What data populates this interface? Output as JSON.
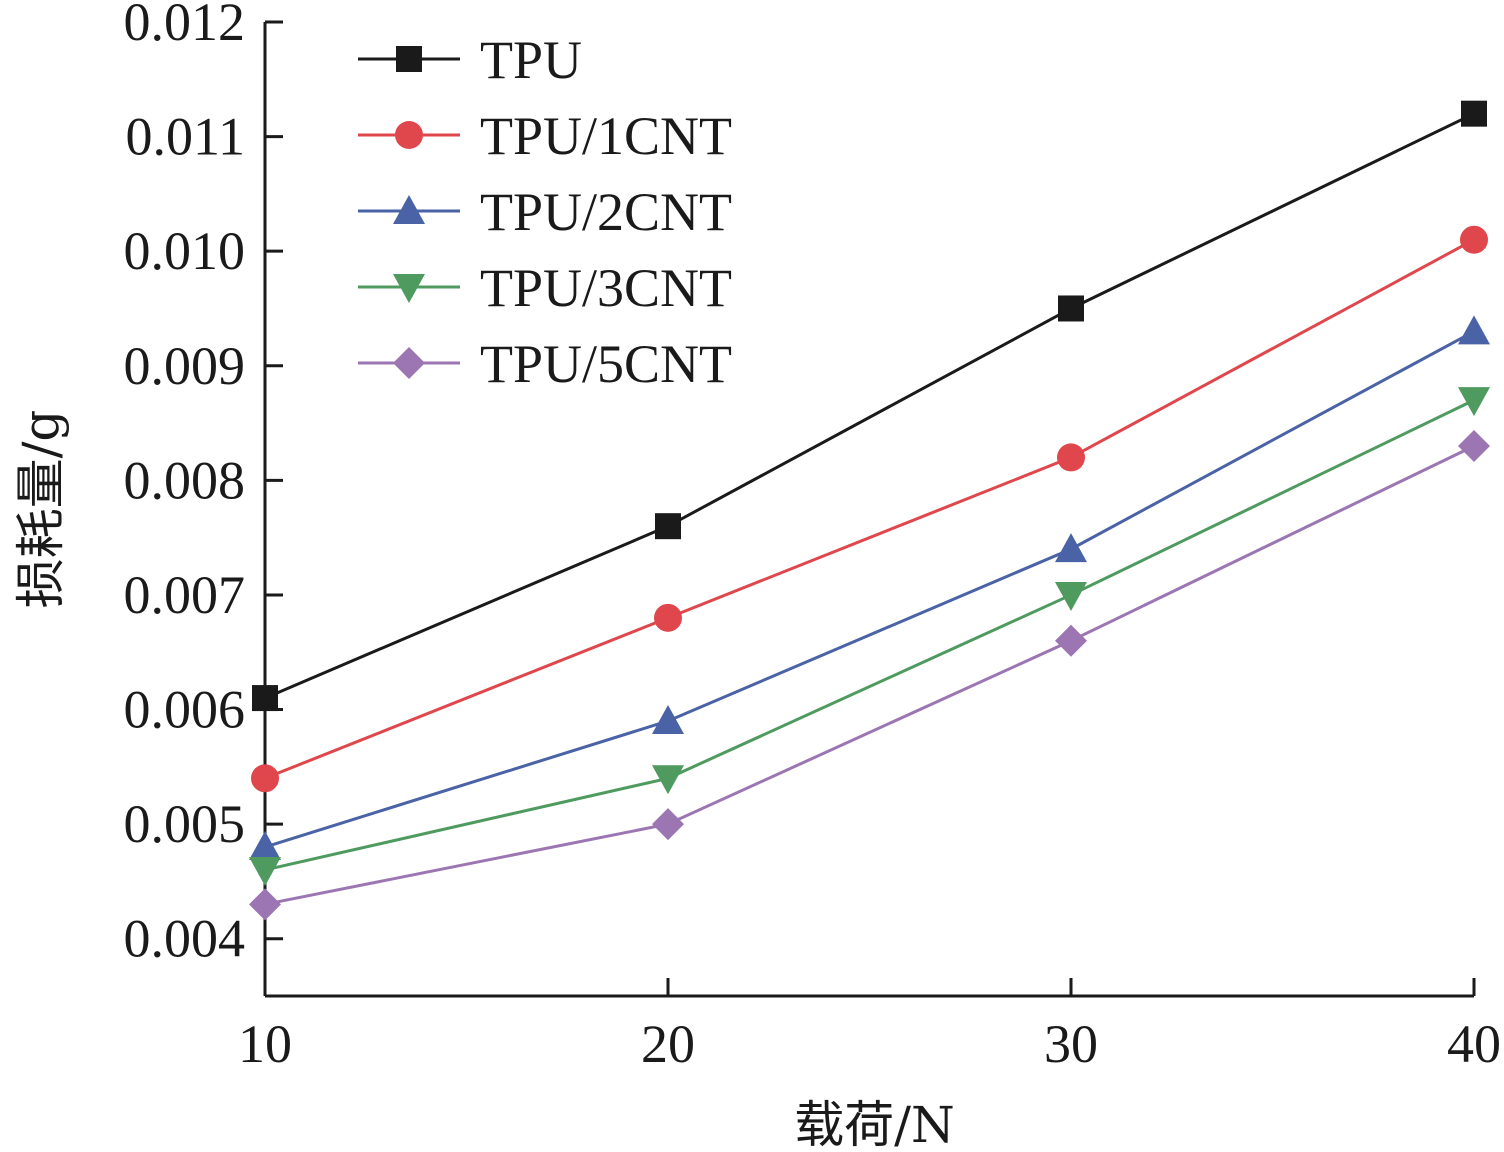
{
  "chart_data": {
    "type": "line",
    "xlabel": "载荷/N",
    "ylabel": "损耗量/g",
    "x": [
      10,
      20,
      30,
      40
    ],
    "xlim": [
      10,
      40
    ],
    "ylim": [
      0.0035,
      0.012
    ],
    "xticks": [
      "10",
      "20",
      "30",
      "40"
    ],
    "yticks": [
      "0.004",
      "0.005",
      "0.006",
      "0.007",
      "0.008",
      "0.009",
      "0.010",
      "0.011",
      "0.012"
    ],
    "grid": false,
    "legend_position": "top-left",
    "series": [
      {
        "name": "TPU",
        "color": "#1a1a1a",
        "marker": "square",
        "values": [
          0.0061,
          0.0076,
          0.0095,
          0.0112
        ]
      },
      {
        "name": "TPU/1CNT",
        "color": "#e0474c",
        "marker": "circle",
        "values": [
          0.0054,
          0.0068,
          0.0082,
          0.0101
        ]
      },
      {
        "name": "TPU/2CNT",
        "color": "#4a62a6",
        "marker": "triangle-up",
        "values": [
          0.0048,
          0.0059,
          0.0074,
          0.0093
        ]
      },
      {
        "name": "TPU/3CNT",
        "color": "#4f9a5f",
        "marker": "triangle-down",
        "values": [
          0.0046,
          0.0054,
          0.007,
          0.0087
        ]
      },
      {
        "name": "TPU/5CNT",
        "color": "#9b76b3",
        "marker": "diamond",
        "values": [
          0.0043,
          0.005,
          0.0066,
          0.0083
        ]
      }
    ]
  }
}
